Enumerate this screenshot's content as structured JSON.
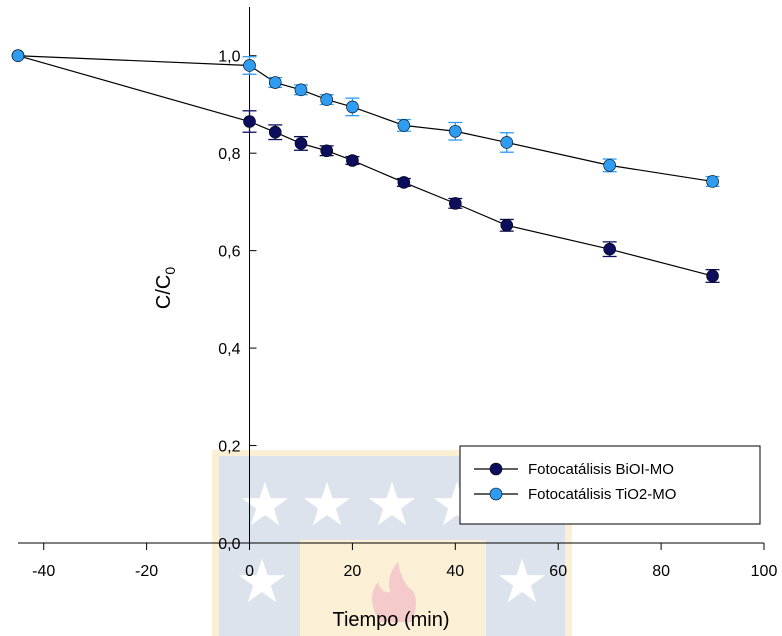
{
  "chart_data": {
    "type": "line",
    "xlabel": "Tiempo (min)",
    "ylabel_main": "C/C",
    "ylabel_sub": "0",
    "xlim": [
      -45,
      100
    ],
    "ylim": [
      0,
      1.1
    ],
    "x_ticks": [
      -40,
      -20,
      0,
      20,
      40,
      60,
      80,
      100
    ],
    "x_tick_labels": [
      "-40",
      "-20",
      "0",
      "20",
      "40",
      "60",
      "80",
      "100"
    ],
    "y_ticks": [
      0,
      0.2,
      0.4,
      0.6,
      0.8,
      1.0
    ],
    "y_tick_labels": [
      "0,0",
      "0,2",
      "0,4",
      "0,6",
      "0,8",
      "1,0"
    ],
    "legend_position": "bottom-right",
    "series": [
      {
        "name": "Fotocatálisis BiOI-MO",
        "color": "#0d0d5e",
        "x": [
          -45,
          0,
          5,
          10,
          15,
          20,
          30,
          40,
          50,
          70,
          90
        ],
        "y": [
          1.0,
          0.865,
          0.843,
          0.82,
          0.805,
          0.785,
          0.74,
          0.697,
          0.652,
          0.603,
          0.548
        ],
        "err": [
          0,
          0.022,
          0.015,
          0.014,
          0.01,
          0.008,
          0.008,
          0.01,
          0.012,
          0.015,
          0.013
        ]
      },
      {
        "name": "Fotocatálisis TiO2-MO",
        "color": "#2e9cf0",
        "x": [
          -45,
          0,
          5,
          10,
          15,
          20,
          30,
          40,
          50,
          70,
          90
        ],
        "y": [
          1.0,
          0.98,
          0.945,
          0.93,
          0.91,
          0.895,
          0.857,
          0.845,
          0.822,
          0.775,
          0.742
        ],
        "err": [
          0,
          0.018,
          0.01,
          0.01,
          0.01,
          0.018,
          0.012,
          0.018,
          0.02,
          0.013,
          0.01
        ]
      }
    ]
  }
}
